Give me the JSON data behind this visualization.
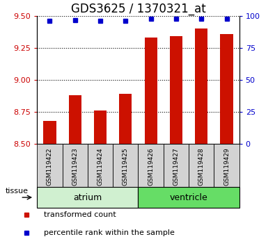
{
  "title": "GDS3625 / 1370321_at",
  "samples": [
    "GSM119422",
    "GSM119423",
    "GSM119424",
    "GSM119425",
    "GSM119426",
    "GSM119427",
    "GSM119428",
    "GSM119429"
  ],
  "transformed_counts": [
    8.68,
    8.88,
    8.76,
    8.89,
    9.33,
    9.34,
    9.4,
    9.36
  ],
  "percentile_ranks": [
    96,
    97,
    96,
    96,
    98,
    98,
    98,
    98
  ],
  "ylim_left": [
    8.5,
    9.5
  ],
  "ylim_right": [
    0,
    100
  ],
  "yticks_left": [
    8.5,
    8.75,
    9.0,
    9.25,
    9.5
  ],
  "yticks_right": [
    0,
    25,
    50,
    75,
    100
  ],
  "groups": [
    {
      "label": "atrium",
      "start": 0,
      "end": 4,
      "color": "#d0f0d0"
    },
    {
      "label": "ventricle",
      "start": 4,
      "end": 8,
      "color": "#66dd66"
    }
  ],
  "bar_color": "#cc1100",
  "dot_color": "#0000cc",
  "bar_bottom": 8.5,
  "bar_width": 0.5,
  "left_axis_color": "#cc0000",
  "right_axis_color": "#0000cc",
  "title_fontsize": 12,
  "tick_fontsize": 8,
  "sample_label_fontsize": 6.5,
  "group_label_fontsize": 9,
  "legend_fontsize": 8,
  "tissue_label": "tissue",
  "legend_items": [
    "transformed count",
    "percentile rank within the sample"
  ],
  "sample_box_color": "#d3d3d3"
}
